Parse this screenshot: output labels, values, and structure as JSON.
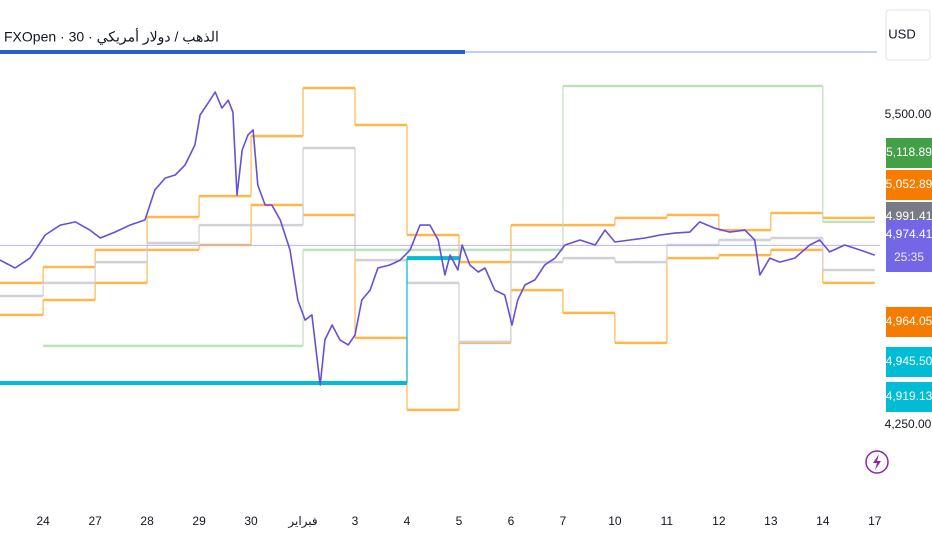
{
  "chart_data": {
    "type": "line",
    "title": "FXOpen · 30 · الذهب / دولار أمريكي",
    "currency": "USD",
    "countdown": "25:35",
    "xlim": [
      -0.83,
      16.1
    ],
    "ylim": [
      3907,
      5964
    ],
    "xticks": [
      {
        "value": 0,
        "label": "24"
      },
      {
        "value": 1,
        "label": "27"
      },
      {
        "value": 2,
        "label": "28"
      },
      {
        "value": 3,
        "label": "29"
      },
      {
        "value": 4,
        "label": "30"
      },
      {
        "value": 5,
        "label": "فبراير"
      },
      {
        "value": 6,
        "label": "3"
      },
      {
        "value": 7,
        "label": "4"
      },
      {
        "value": 8,
        "label": "5"
      },
      {
        "value": 9,
        "label": "6"
      },
      {
        "value": 10,
        "label": "7"
      },
      {
        "value": 11,
        "label": "10"
      },
      {
        "value": 12,
        "label": "11"
      },
      {
        "value": 13,
        "label": "12"
      },
      {
        "value": 14,
        "label": "13"
      },
      {
        "value": 15,
        "label": "14"
      },
      {
        "value": 16,
        "label": "17"
      }
    ],
    "yticks": [
      {
        "value": 5500,
        "label": "5,500.00"
      },
      {
        "value": 4250,
        "label": "4,250.00"
      }
    ],
    "series": [
      {
        "color": "#6750d8",
        "x": [
          -0.83,
          -0.54,
          -0.25,
          0.04,
          0.33,
          0.62,
          0.9,
          1.1,
          1.38,
          1.67,
          1.96,
          2.15,
          2.35,
          2.54,
          2.73,
          2.92,
          3.02,
          3.21,
          3.31,
          3.44,
          3.56,
          3.65,
          3.73,
          3.83,
          3.94,
          4.04,
          4.13,
          4.27,
          4.4,
          4.56,
          4.75,
          4.9,
          5.04,
          5.17,
          5.33,
          5.42,
          5.56,
          5.71,
          5.87,
          6,
          6.13,
          6.29,
          6.44,
          6.67,
          6.87,
          7.06,
          7.25,
          7.44,
          7.6,
          7.73,
          7.83,
          7.98,
          8.06,
          8.21,
          8.37,
          8.5,
          8.69,
          8.88,
          9.02,
          9.13,
          9.27,
          9.46,
          9.65,
          9.85,
          10.04,
          10.33,
          10.62,
          10.81,
          11,
          11.29,
          11.58,
          11.87,
          12.15,
          12.44,
          12.63,
          12.92,
          13.21,
          13.5,
          13.69,
          13.79,
          13.98,
          14.17,
          14.46,
          14.75,
          14.94,
          15.13,
          15.42,
          15.71,
          16
        ],
        "values": [
          4915,
          4883,
          4923,
          5016,
          5056,
          5069,
          5036,
          5004,
          5028,
          5056,
          5077,
          5198,
          5246,
          5258,
          5298,
          5379,
          5500,
          5560,
          5593,
          5528,
          5560,
          5512,
          5177,
          5359,
          5419,
          5440,
          5218,
          5137,
          5137,
          5077,
          4956,
          4754,
          4673,
          4694,
          4411,
          4593,
          4653,
          4593,
          4573,
          4613,
          4754,
          4794,
          4883,
          4895,
          4915,
          4956,
          5056,
          5056,
          4996,
          4855,
          4935,
          4875,
          4976,
          4895,
          4867,
          4883,
          4794,
          4774,
          4653,
          4754,
          4815,
          4835,
          4895,
          4923,
          4976,
          4996,
          4976,
          5036,
          4988,
          4996,
          5004,
          5016,
          5024,
          5028,
          5069,
          5044,
          5028,
          5036,
          4996,
          4855,
          4923,
          4907,
          4923,
          4976,
          4996,
          4948,
          4976,
          4956,
          4935
        ]
      }
    ],
    "steps": [
      {
        "color": "#ffb74d",
        "end": 16,
        "x": [
          -0.83,
          0,
          1,
          2,
          3,
          4,
          5,
          6,
          7,
          8,
          9,
          10,
          11,
          12,
          13,
          14,
          15
        ],
        "values": [
          4823,
          4887,
          4956,
          5089,
          5173,
          5415,
          5609,
          5460,
          5016,
          4907,
          5056,
          5056,
          5085,
          5097,
          5036,
          5105,
          5085
        ]
      },
      {
        "color": "#ffb74d",
        "end": 16,
        "x": [
          -0.83,
          0,
          1,
          2,
          3,
          4,
          5,
          6,
          7,
          8,
          9,
          10,
          11,
          12,
          13,
          14,
          15
        ],
        "values": [
          4694,
          4754,
          4823,
          4956,
          4976,
          5137,
          5097,
          4601,
          4311,
          4581,
          4794,
          4702,
          4581,
          4923,
          4935,
          4956,
          4823
        ]
      },
      {
        "color": "#bfe0bf",
        "end": 16,
        "x": [
          0,
          5,
          10,
          15
        ],
        "values": [
          4569,
          4956,
          5617,
          5069
        ]
      },
      {
        "color": "#d0d0d6",
        "end": 16,
        "x": [
          -0.83,
          0,
          1,
          2,
          3,
          4,
          5,
          6,
          7,
          8,
          9,
          10,
          11,
          12,
          13,
          14,
          15
        ],
        "values": [
          4770,
          4823,
          4907,
          4984,
          5056,
          5056,
          5367,
          4915,
          4823,
          4585,
          4907,
          4923,
          4907,
          4976,
          4996,
          5004,
          4875
        ]
      },
      {
        "color": "#00bcd4",
        "end": 8,
        "x": [
          -0.83,
          7
        ],
        "values": [
          4419,
          4923
        ]
      }
    ],
    "price_tags": [
      {
        "value": 5118.89,
        "label": "5,118.89",
        "color": "#43a047"
      },
      {
        "value": 5052.89,
        "label": "5,052.89",
        "color": "#f57c00"
      },
      {
        "value": 4991.41,
        "label": "4,991.41",
        "color": "#787b86"
      },
      {
        "value": 4974.41,
        "label": "4,974.41",
        "color": "#7367e8"
      },
      {
        "value": 4964.05,
        "label": "4,964.05",
        "color": "#f57c00"
      },
      {
        "value": 4945.5,
        "label": "4,945.50",
        "color": "#00bcd4"
      },
      {
        "value": 4919.13,
        "label": "4,919.13",
        "color": "#00bcd4"
      }
    ]
  }
}
